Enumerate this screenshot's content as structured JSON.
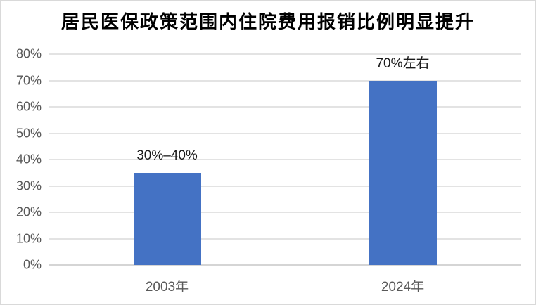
{
  "window": {
    "title": "居民医保政策范围内住院费用报销比例明显提升"
  },
  "chart_data": {
    "type": "bar",
    "title": "居民医保政策范围内住院费用报销比例明显提升",
    "categories": [
      "2003年",
      "2024年"
    ],
    "values": [
      35,
      70
    ],
    "data_labels": [
      "30%–40%",
      "70%左右"
    ],
    "xlabel": "",
    "ylabel": "",
    "ylim": [
      0,
      80
    ],
    "yticks": [
      0,
      10,
      20,
      30,
      40,
      50,
      60,
      70,
      80
    ],
    "ytick_labels": [
      "0%",
      "10%",
      "20%",
      "30%",
      "40%",
      "50%",
      "60%",
      "70%",
      "80%"
    ],
    "grid": true,
    "legend_position": "none",
    "bar_color": "#4472C4",
    "axis_text_color": "#595959",
    "gridline_color": "#E3E3E3",
    "baseline_color": "#D5D5D5",
    "data_label_color": "#1a1a1a",
    "frame_border_color": "#D9D9D9"
  }
}
